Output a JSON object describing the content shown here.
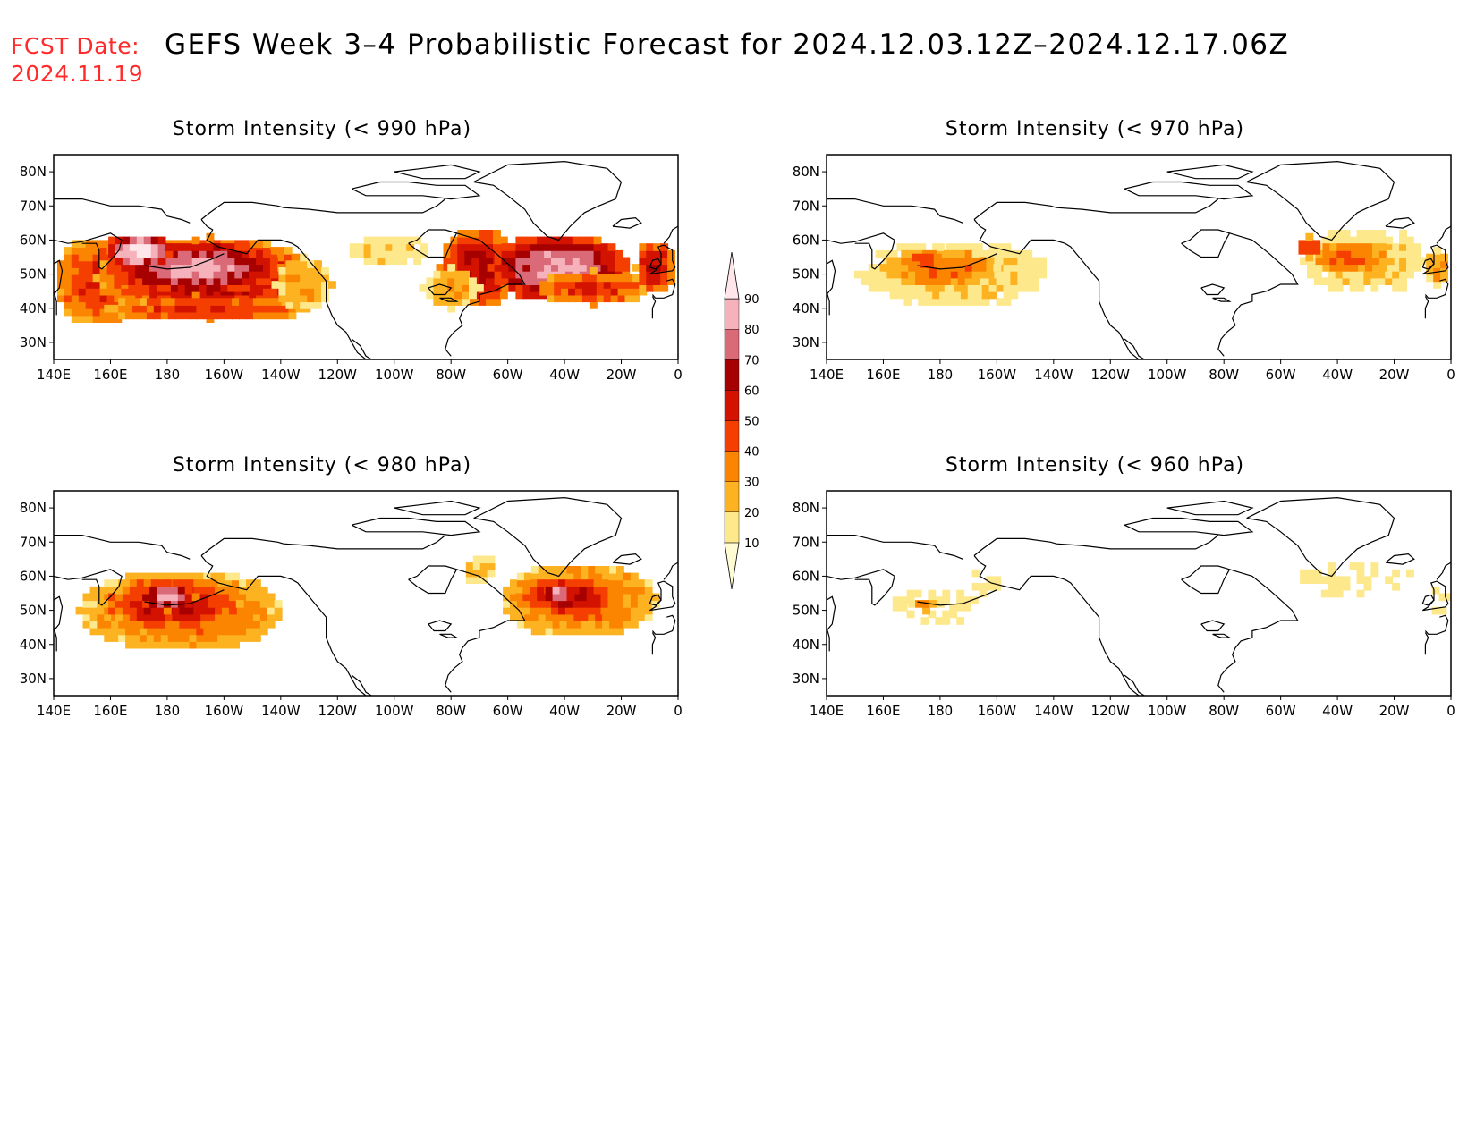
{
  "fcst_label": "FCST Date:",
  "fcst_date": "2024.11.19",
  "title": "GEFS Week 3–4 Probabilistic Forecast for 2024.12.03.12Z–2024.12.17.06Z",
  "colorbar": {
    "levels": [
      "10",
      "20",
      "30",
      "40",
      "50",
      "60",
      "70",
      "80",
      "90"
    ],
    "colors": [
      "#fffbd2",
      "#fee88c",
      "#fdb321",
      "#fb8500",
      "#f43f00",
      "#d41200",
      "#a60000",
      "#db6a78",
      "#f6b2bb",
      "#ffe6ea"
    ]
  },
  "axes": {
    "lon_labels": [
      "140E",
      "160E",
      "180",
      "160W",
      "140W",
      "120W",
      "100W",
      "80W",
      "60W",
      "40W",
      "20W",
      "0"
    ],
    "lat_labels": [
      "80N",
      "70N",
      "60N",
      "50N",
      "40N",
      "30N"
    ]
  },
  "chart_data": [
    {
      "type": "heatmap",
      "title": "Storm Intensity (< 990 hPa)",
      "lon_range": [
        140,
        360
      ],
      "lat_range": [
        25,
        85
      ],
      "regions": [
        {
          "lon": 156,
          "lat": 48,
          "rlon": 16,
          "rlat": 13,
          "level": 50
        },
        {
          "lon": 195,
          "lat": 49,
          "rlon": 40,
          "rlat": 12,
          "level": 60
        },
        {
          "lon": 190,
          "lat": 52,
          "rlon": 30,
          "rlat": 8,
          "level": 80
        },
        {
          "lon": 195,
          "lat": 40,
          "rlon": 36,
          "rlat": 4,
          "level": 50
        },
        {
          "lon": 170,
          "lat": 57,
          "rlon": 12,
          "rlat": 5,
          "level": 90
        },
        {
          "lon": 228,
          "lat": 47,
          "rlon": 10,
          "rlat": 8,
          "level": 30
        },
        {
          "lon": 257,
          "lat": 57,
          "rlon": 14,
          "rlat": 5,
          "level": 20
        },
        {
          "lon": 290,
          "lat": 52,
          "rlon": 14,
          "rlat": 12,
          "level": 60
        },
        {
          "lon": 318,
          "lat": 52,
          "rlon": 24,
          "rlat": 10,
          "level": 80
        },
        {
          "lon": 330,
          "lat": 46,
          "rlon": 20,
          "rlat": 5,
          "level": 50
        },
        {
          "lon": 352,
          "lat": 52,
          "rlon": 7,
          "rlat": 8,
          "level": 60
        },
        {
          "lon": 280,
          "lat": 46,
          "rlon": 10,
          "rlat": 6,
          "level": 30
        }
      ]
    },
    {
      "type": "heatmap",
      "title": "Storm Intensity (< 970 hPa)",
      "lon_range": [
        140,
        360
      ],
      "lat_range": [
        25,
        85
      ],
      "regions": [
        {
          "lon": 185,
          "lat": 50,
          "rlon": 34,
          "rlat": 10,
          "level": 20
        },
        {
          "lon": 180,
          "lat": 52,
          "rlon": 20,
          "rlat": 6,
          "level": 40
        },
        {
          "lon": 175,
          "lat": 54,
          "rlon": 6,
          "rlat": 3,
          "level": 50
        },
        {
          "lon": 330,
          "lat": 54,
          "rlon": 22,
          "rlat": 10,
          "level": 20
        },
        {
          "lon": 325,
          "lat": 55,
          "rlon": 14,
          "rlat": 5,
          "level": 40
        },
        {
          "lon": 310,
          "lat": 58,
          "rlon": 5,
          "rlat": 3,
          "level": 50
        },
        {
          "lon": 355,
          "lat": 52,
          "rlon": 5,
          "rlat": 5,
          "level": 30
        }
      ]
    },
    {
      "type": "heatmap",
      "title": "Storm Intensity (< 980 hPa)",
      "lon_range": [
        140,
        360
      ],
      "lat_range": [
        25,
        85
      ],
      "regions": [
        {
          "lon": 185,
          "lat": 50,
          "rlon": 36,
          "rlat": 12,
          "level": 40
        },
        {
          "lon": 182,
          "lat": 52,
          "rlon": 24,
          "rlat": 8,
          "level": 60
        },
        {
          "lon": 180,
          "lat": 54,
          "rlon": 10,
          "rlat": 4,
          "level": 80
        },
        {
          "lon": 325,
          "lat": 53,
          "rlon": 28,
          "rlat": 11,
          "level": 40
        },
        {
          "lon": 322,
          "lat": 54,
          "rlon": 18,
          "rlat": 6,
          "level": 60
        },
        {
          "lon": 318,
          "lat": 55,
          "rlon": 6,
          "rlat": 3,
          "level": 80
        },
        {
          "lon": 290,
          "lat": 62,
          "rlon": 6,
          "rlat": 5,
          "level": 20
        }
      ]
    },
    {
      "type": "heatmap",
      "title": "Storm Intensity (< 960 hPa)",
      "lon_range": [
        140,
        360
      ],
      "lat_range": [
        25,
        85
      ],
      "regions": [
        {
          "lon": 178,
          "lat": 51,
          "rlon": 16,
          "rlat": 6,
          "level": 10
        },
        {
          "lon": 175,
          "lat": 52,
          "rlon": 5,
          "rlat": 2,
          "level": 30
        },
        {
          "lon": 196,
          "lat": 58,
          "rlon": 6,
          "rlat": 5,
          "level": 10
        },
        {
          "lon": 325,
          "lat": 59,
          "rlon": 22,
          "rlat": 6,
          "level": 10
        },
        {
          "lon": 312,
          "lat": 59,
          "rlon": 4,
          "rlat": 2,
          "level": 20
        },
        {
          "lon": 356,
          "lat": 53,
          "rlon": 4,
          "rlat": 5,
          "level": 10
        }
      ]
    }
  ]
}
